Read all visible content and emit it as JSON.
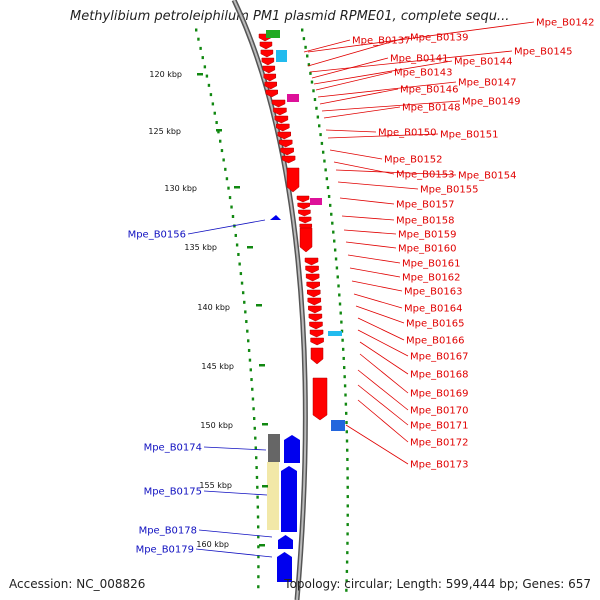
{
  "title": "Methylibium petroleiphilum PM1 plasmid RPME01, complete sequ...",
  "footer": {
    "accession": "Accession: NC_008826",
    "summary": "Topology: circular; Length: 599,444 bp; Genes: 657"
  },
  "colors": {
    "backbone": "#888888",
    "cds_forward": "#ff0000",
    "cds_reverse": "#0000ee",
    "gc_track": "#118811",
    "red_label": "#e00000",
    "blue_label": "#1010c0"
  },
  "kbp_ticks": [
    "120 kbp",
    "125 kbp",
    "130 kbp",
    "135 kbp",
    "140 kbp",
    "145 kbp",
    "150 kbp",
    "155 kbp",
    "160 kbp"
  ],
  "forward_genes": [
    "Mpe_B0142",
    "Mpe_B0137",
    "Mpe_B0139",
    "Mpe_B0145",
    "Mpe_B0141",
    "Mpe_B0144",
    "Mpe_B0143",
    "Mpe_B0147",
    "Mpe_B0146",
    "Mpe_B0149",
    "Mpe_B0148",
    "Mpe_B0150",
    "Mpe_B0151",
    "Mpe_B0152",
    "Mpe_B0153",
    "Mpe_B0154",
    "Mpe_B0155",
    "Mpe_B0157",
    "Mpe_B0158",
    "Mpe_B0159",
    "Mpe_B0160",
    "Mpe_B0161",
    "Mpe_B0162",
    "Mpe_B0163",
    "Mpe_B0164",
    "Mpe_B0165",
    "Mpe_B0166",
    "Mpe_B0167",
    "Mpe_B0168",
    "Mpe_B0169",
    "Mpe_B0170",
    "Mpe_B0171",
    "Mpe_B0172",
    "Mpe_B0173"
  ],
  "reverse_genes": [
    "Mpe_B0156",
    "Mpe_B0174",
    "Mpe_B0175",
    "Mpe_B0178",
    "Mpe_B0179"
  ]
}
